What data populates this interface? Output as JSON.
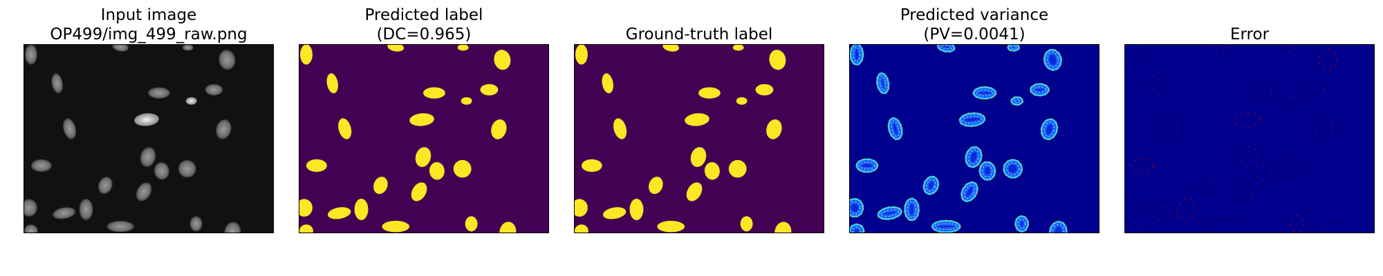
{
  "panels": [
    {
      "id": "input",
      "title_lines": [
        "Input image",
        "OP499/img_499_raw.png"
      ],
      "background": "#111111"
    },
    {
      "id": "predicted-label",
      "title_lines": [
        "Predicted label",
        "(DC=0.965)"
      ],
      "background": "#440154",
      "foreground": "#fde725"
    },
    {
      "id": "ground-truth-label",
      "title_lines": [
        "Ground-truth label"
      ],
      "background": "#440154",
      "foreground": "#fde725"
    },
    {
      "id": "predicted-variance",
      "title_lines": [
        "Predicted variance",
        "(PV=0.0041)"
      ],
      "background": "#00008f"
    },
    {
      "id": "error",
      "title_lines": [
        "Error"
      ],
      "background": "#00008c"
    }
  ]
}
